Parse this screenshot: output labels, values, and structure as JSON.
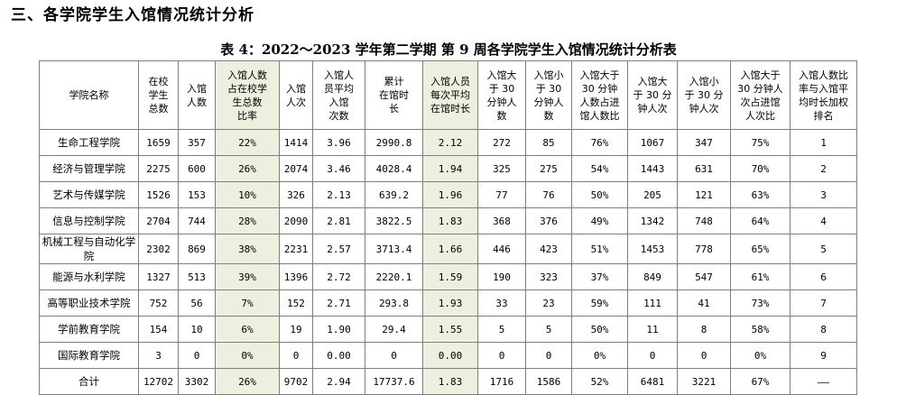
{
  "section_title": "三、各学院学生入馆情况统计分析",
  "table_title": "表 4：2022～2023 学年第二学期 第 9 周各学院学生入馆情况统计分析表",
  "highlight_color": "#ebf1de",
  "headers": [
    "学院名称",
    "在校\n学生\n总数",
    "入馆\n人数",
    "入馆人数\n占在校学\n生总数\n比率",
    "入馆\n人次",
    "入馆人\n员平均\n入馆\n次数",
    "累计\n在馆时\n长",
    "入馆人员\n每次平均\n在馆时长",
    "入馆大\n于 30\n分钟人\n数",
    "入馆小\n于 30\n分钟人\n数",
    "入馆大于\n30 分钟\n人数占进\n馆人数比",
    "入馆大\n于 30 分\n钟人次",
    "入馆小\n于 30 分\n钟人次",
    "入馆大于\n30 分钟人\n次占进馆\n人次比",
    "入馆人数比\n率与入馆平\n均时长加权\n排名"
  ],
  "rows": [
    [
      "生命工程学院",
      "1659",
      "357",
      "22%",
      "1414",
      "3.96",
      "2990.8",
      "2.12",
      "272",
      "85",
      "76%",
      "1067",
      "347",
      "75%",
      "1"
    ],
    [
      "经济与管理学院",
      "2275",
      "600",
      "26%",
      "2074",
      "3.46",
      "4028.4",
      "1.94",
      "325",
      "275",
      "54%",
      "1443",
      "631",
      "70%",
      "2"
    ],
    [
      "艺术与传媒学院",
      "1526",
      "153",
      "10%",
      "326",
      "2.13",
      "639.2",
      "1.96",
      "77",
      "76",
      "50%",
      "205",
      "121",
      "63%",
      "3"
    ],
    [
      "信息与控制学院",
      "2704",
      "744",
      "28%",
      "2090",
      "2.81",
      "3822.5",
      "1.83",
      "368",
      "376",
      "49%",
      "1342",
      "748",
      "64%",
      "4"
    ],
    [
      "机械工程与自动化学院",
      "2302",
      "869",
      "38%",
      "2231",
      "2.57",
      "3713.4",
      "1.66",
      "446",
      "423",
      "51%",
      "1453",
      "778",
      "65%",
      "5"
    ],
    [
      "能源与水利学院",
      "1327",
      "513",
      "39%",
      "1396",
      "2.72",
      "2220.1",
      "1.59",
      "190",
      "323",
      "37%",
      "849",
      "547",
      "61%",
      "6"
    ],
    [
      "高等职业技术学院",
      "752",
      "56",
      "7%",
      "152",
      "2.71",
      "293.8",
      "1.93",
      "33",
      "23",
      "59%",
      "111",
      "41",
      "73%",
      "7"
    ],
    [
      "学前教育学院",
      "154",
      "10",
      "6%",
      "19",
      "1.90",
      "29.4",
      "1.55",
      "5",
      "5",
      "50%",
      "11",
      "8",
      "58%",
      "8"
    ],
    [
      "国际教育学院",
      "3",
      "0",
      "0%",
      "0",
      "0.00",
      "0",
      "0.00",
      "0",
      "0",
      "0%",
      "0",
      "0",
      "0%",
      "9"
    ],
    [
      "合计",
      "12702",
      "3302",
      "26%",
      "9702",
      "2.94",
      "17737.6",
      "1.83",
      "1716",
      "1586",
      "52%",
      "6481",
      "3221",
      "67%",
      "——"
    ]
  ]
}
